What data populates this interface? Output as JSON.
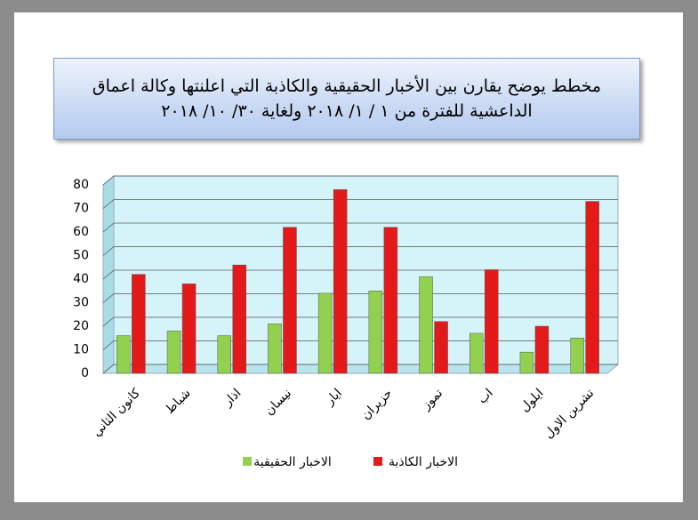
{
  "chart_data": {
    "type": "bar",
    "title": "مخطط يوضح يقارن بين الأخبار الحقيقية والكاذبة  التي اعلنتها وكالة اعماق الداعشية للفترة من ١ / ١/ ٢٠١٨ ولغاية ٣٠/ ١٠/ ٢٠١٨",
    "categories": [
      "كانون الثاني",
      "شباط",
      "اذار",
      "نيسان",
      "ايار",
      "حزيران",
      "تموز",
      "اب",
      "ايلول",
      "تشرين الاول"
    ],
    "series": [
      {
        "name": "الاخبار الحقيقية",
        "color": "#92d050",
        "values": [
          16,
          18,
          16,
          21,
          34,
          35,
          41,
          17,
          9,
          15
        ]
      },
      {
        "name": "الاخبار الكاذبة",
        "color": "#e41a1a",
        "values": [
          42,
          38,
          46,
          62,
          78,
          62,
          22,
          44,
          20,
          73
        ]
      }
    ],
    "ylim": [
      0,
      80
    ],
    "yticks": [
      0,
      10,
      20,
      30,
      40,
      50,
      60,
      70,
      80
    ],
    "grid": true,
    "legend": "bottom"
  }
}
